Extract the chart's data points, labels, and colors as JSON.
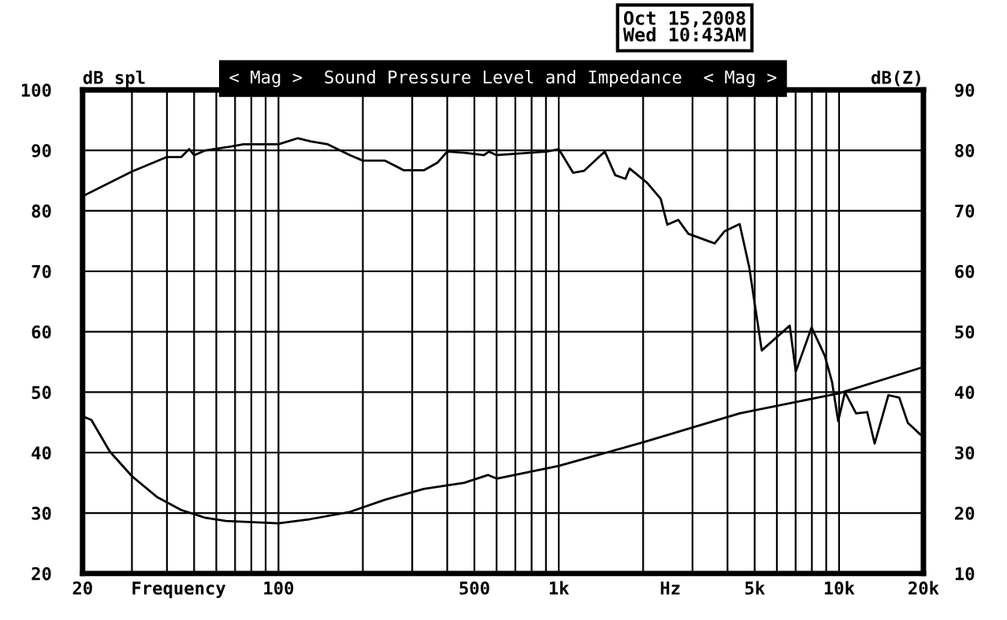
{
  "chart_data": {
    "type": "line",
    "title": "< Mag >  Sound Pressure Level and Impedance  < Mag >",
    "ylabel": "dB spl",
    "y2label": "dB(Z)",
    "annotations": [
      "Oct 15,2008",
      "Wed 10:43AM"
    ],
    "xlim": [
      20,
      20000
    ],
    "log": "x",
    "xticks": [
      20,
      {
        "value": 44,
        "label": "Frequency"
      },
      100,
      500,
      {
        "value": 1000,
        "label": "1k"
      },
      {
        "value": 2500,
        "label": "Hz"
      },
      {
        "value": 5000,
        "label": "5k"
      },
      {
        "value": 10000,
        "label": "10k"
      },
      {
        "value": 20000,
        "label": "20k"
      }
    ],
    "ylim": [
      20,
      100
    ],
    "yticks": [
      20,
      30,
      40,
      50,
      60,
      70,
      80,
      90,
      100
    ],
    "y2lim": [
      10,
      90
    ],
    "y2ticks": [
      10,
      20,
      30,
      40,
      50,
      60,
      70,
      80,
      90
    ],
    "grid": true,
    "marker": "none",
    "line_style": "solid",
    "series": [
      {
        "color": "#000000",
        "x": [
          20,
          30,
          40,
          45,
          48,
          50,
          55,
          65,
          75,
          100,
          117,
          130,
          150,
          180,
          200,
          240,
          280,
          330,
          370,
          400,
          460,
          540,
          564,
          600,
          906,
          1000,
          1125,
          1230,
          1460,
          1590,
          1730,
          1790,
          2070,
          2310,
          2440,
          2670,
          2900,
          3600,
          3900,
          4420,
          4780,
          5300,
          6670,
          7010,
          7980,
          8900,
          9440,
          9930,
          10500,
          11500,
          12600,
          13400,
          15000,
          16400,
          17600,
          19500
        ],
        "values": [
          82.4,
          86.5,
          88.9,
          88.9,
          90.2,
          89.2,
          90,
          90.5,
          91,
          91,
          92,
          91.5,
          91,
          89.2,
          88.3,
          88.3,
          86.7,
          86.7,
          88,
          89.8,
          89.6,
          89.2,
          89.8,
          89.2,
          89.8,
          90.2,
          86.3,
          86.6,
          89.8,
          85.9,
          85.3,
          87,
          84.6,
          82,
          77.7,
          78.5,
          76.2,
          74.6,
          76.6,
          77.8,
          70.7,
          56.9,
          61,
          53.4,
          60.7,
          56,
          51.7,
          45.2,
          50,
          46.5,
          46.7,
          41.5,
          49.5,
          49.1,
          44.9,
          43
        ]
      },
      {
        "color": "#000000",
        "axis": "y2",
        "x": [
          20,
          21.5,
          25,
          30,
          37,
          45,
          55,
          65,
          100,
          130,
          180,
          240,
          330,
          460,
          560,
          600,
          1000,
          2000,
          4420,
          10000,
          19500
        ],
        "values": [
          36,
          35.4,
          30.2,
          26.1,
          22.6,
          20.5,
          19.2,
          18.7,
          18.3,
          19,
          20.2,
          22.2,
          24,
          25,
          26.3,
          25.7,
          27.8,
          31.7,
          36.5,
          39.8,
          44
        ]
      }
    ]
  }
}
